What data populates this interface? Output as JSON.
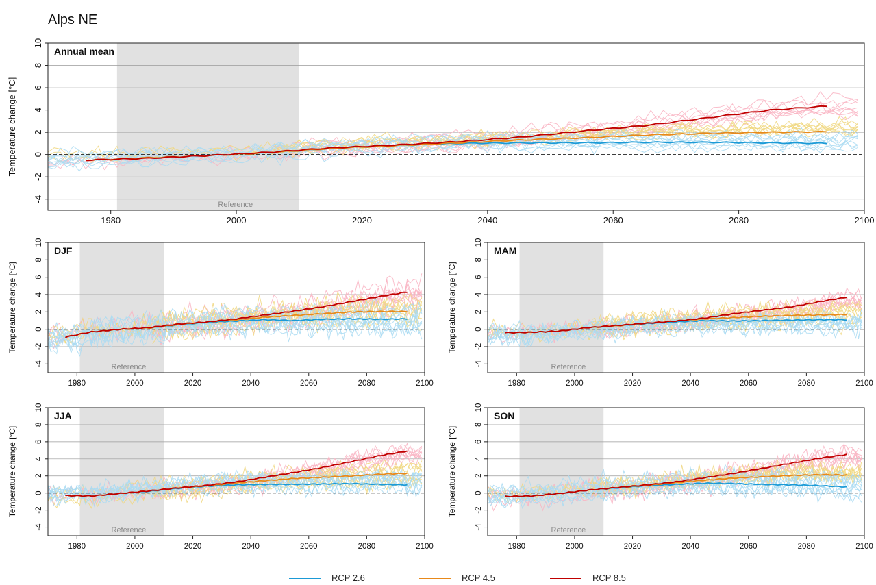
{
  "title": "Alps NE",
  "colors": {
    "rcp26_mean": "#1b9ad6",
    "rcp45_mean": "#e8891a",
    "rcp85_mean": "#c00000",
    "rcp26_members": "#a9daf2",
    "rcp45_members": "#f0d77f",
    "rcp85_members": "#f9b3c2",
    "reference_shade": "#e1e1e1"
  },
  "legend": [
    {
      "label": "RCP 2.6",
      "color": "#1b9ad6"
    },
    {
      "label": "RCP 4.5",
      "color": "#e8891a"
    },
    {
      "label": "RCP 8.5",
      "color": "#c00000"
    }
  ],
  "chart_data": [
    {
      "type": "line",
      "panel": "Annual mean",
      "ylabel": "Temperature change [°C]",
      "xlim": [
        1970,
        2100
      ],
      "ylim": [
        -5,
        10
      ],
      "xticks": [
        1980,
        2000,
        2020,
        2040,
        2060,
        2080,
        2100
      ],
      "yticks": [
        -4,
        -2,
        0,
        2,
        4,
        6,
        8,
        10
      ],
      "reference_period": [
        1981,
        2010
      ],
      "reference_label": "Reference",
      "member_band_halfwidth": 1.0,
      "series": [
        {
          "name": "RCP 2.6",
          "x": [
            1976,
            1985,
            1995,
            2005,
            2015,
            2025,
            2035,
            2045,
            2055,
            2065,
            2075,
            2085,
            2094
          ],
          "y": [
            -0.5,
            -0.3,
            -0.1,
            0.15,
            0.55,
            0.8,
            1.0,
            1.05,
            1.05,
            1.1,
            1.1,
            1.05,
            1.0
          ]
        },
        {
          "name": "RCP 4.5",
          "x": [
            1976,
            1985,
            1995,
            2005,
            2015,
            2025,
            2035,
            2045,
            2055,
            2065,
            2075,
            2085,
            2094
          ],
          "y": [
            -0.5,
            -0.3,
            -0.1,
            0.15,
            0.55,
            0.8,
            1.05,
            1.3,
            1.5,
            1.75,
            1.9,
            2.0,
            2.05
          ]
        },
        {
          "name": "RCP 8.5",
          "x": [
            1976,
            1985,
            1995,
            2005,
            2015,
            2025,
            2035,
            2045,
            2055,
            2065,
            2075,
            2085,
            2094
          ],
          "y": [
            -0.5,
            -0.35,
            -0.1,
            0.2,
            0.6,
            0.85,
            1.15,
            1.55,
            2.1,
            2.6,
            3.3,
            4.0,
            4.35
          ]
        }
      ]
    },
    {
      "type": "line",
      "panel": "DJF",
      "ylabel": "Temperature change [°C]",
      "xlim": [
        1970,
        2100
      ],
      "ylim": [
        -5,
        10
      ],
      "xticks": [
        1980,
        2000,
        2020,
        2040,
        2060,
        2080,
        2100
      ],
      "yticks": [
        -4,
        -2,
        0,
        2,
        4,
        6,
        8,
        10
      ],
      "reference_period": [
        1981,
        2010
      ],
      "reference_label": "Reference",
      "member_band_halfwidth": 2.0,
      "series": [
        {
          "name": "RCP 2.6",
          "x": [
            1976,
            1985,
            1995,
            2005,
            2015,
            2025,
            2035,
            2045,
            2055,
            2065,
            2075,
            2085,
            2094
          ],
          "y": [
            -0.9,
            -0.3,
            0.0,
            0.15,
            0.5,
            0.8,
            0.95,
            1.1,
            1.0,
            1.15,
            1.2,
            1.15,
            1.2
          ]
        },
        {
          "name": "RCP 4.5",
          "x": [
            1976,
            1985,
            1995,
            2005,
            2015,
            2025,
            2035,
            2045,
            2055,
            2065,
            2075,
            2085,
            2094
          ],
          "y": [
            -0.9,
            -0.3,
            0.0,
            0.15,
            0.55,
            0.85,
            1.1,
            1.4,
            1.6,
            1.8,
            2.0,
            2.05,
            2.05
          ]
        },
        {
          "name": "RCP 8.5",
          "x": [
            1976,
            1985,
            1995,
            2005,
            2015,
            2025,
            2035,
            2045,
            2055,
            2065,
            2075,
            2085,
            2094
          ],
          "y": [
            -0.9,
            -0.3,
            0.0,
            0.2,
            0.6,
            0.85,
            1.2,
            1.65,
            2.1,
            2.6,
            3.2,
            3.8,
            4.3
          ]
        }
      ]
    },
    {
      "type": "line",
      "panel": "MAM",
      "ylabel": "Temperature change [°C]",
      "xlim": [
        1970,
        2100
      ],
      "ylim": [
        -5,
        10
      ],
      "xticks": [
        1980,
        2000,
        2020,
        2040,
        2060,
        2080,
        2100
      ],
      "yticks": [
        -4,
        -2,
        0,
        2,
        4,
        6,
        8,
        10
      ],
      "reference_period": [
        1981,
        2010
      ],
      "reference_label": "Reference",
      "member_band_halfwidth": 1.6,
      "series": [
        {
          "name": "RCP 2.6",
          "x": [
            1976,
            1985,
            1995,
            2005,
            2015,
            2025,
            2035,
            2045,
            2055,
            2065,
            2075,
            2085,
            2094
          ],
          "y": [
            -0.4,
            -0.35,
            -0.2,
            0.2,
            0.4,
            0.65,
            0.85,
            1.0,
            0.95,
            1.0,
            1.05,
            1.1,
            1.1
          ]
        },
        {
          "name": "RCP 4.5",
          "x": [
            1976,
            1985,
            1995,
            2005,
            2015,
            2025,
            2035,
            2045,
            2055,
            2065,
            2075,
            2085,
            2094
          ],
          "y": [
            -0.4,
            -0.35,
            -0.2,
            0.2,
            0.4,
            0.7,
            0.95,
            1.2,
            1.35,
            1.5,
            1.6,
            1.65,
            1.7
          ]
        },
        {
          "name": "RCP 8.5",
          "x": [
            1976,
            1985,
            1995,
            2005,
            2015,
            2025,
            2035,
            2045,
            2055,
            2065,
            2075,
            2085,
            2094
          ],
          "y": [
            -0.4,
            -0.35,
            -0.2,
            0.2,
            0.45,
            0.7,
            0.95,
            1.3,
            1.8,
            2.2,
            2.6,
            3.2,
            3.7
          ]
        }
      ]
    },
    {
      "type": "line",
      "panel": "JJA",
      "ylabel": "Temperature change [°C]",
      "xlim": [
        1970,
        2100
      ],
      "ylim": [
        -5,
        10
      ],
      "xticks": [
        1980,
        2000,
        2020,
        2040,
        2060,
        2080,
        2100
      ],
      "yticks": [
        -4,
        -2,
        0,
        2,
        4,
        6,
        8,
        10
      ],
      "reference_period": [
        1981,
        2010
      ],
      "reference_label": "Reference",
      "member_band_halfwidth": 1.5,
      "series": [
        {
          "name": "RCP 2.6",
          "x": [
            1976,
            1985,
            1995,
            2005,
            2015,
            2025,
            2035,
            2045,
            2055,
            2065,
            2075,
            2085,
            2094
          ],
          "y": [
            -0.3,
            -0.35,
            -0.05,
            0.2,
            0.55,
            0.8,
            0.95,
            1.0,
            1.0,
            1.05,
            1.1,
            1.0,
            0.95
          ]
        },
        {
          "name": "RCP 4.5",
          "x": [
            1976,
            1985,
            1995,
            2005,
            2015,
            2025,
            2035,
            2045,
            2055,
            2065,
            2075,
            2085,
            2094
          ],
          "y": [
            -0.3,
            -0.35,
            -0.05,
            0.25,
            0.6,
            0.85,
            1.15,
            1.45,
            1.7,
            1.85,
            2.0,
            2.2,
            2.3
          ]
        },
        {
          "name": "RCP 8.5",
          "x": [
            1976,
            1985,
            1995,
            2005,
            2015,
            2025,
            2035,
            2045,
            2055,
            2065,
            2075,
            2085,
            2094
          ],
          "y": [
            -0.3,
            -0.35,
            -0.05,
            0.25,
            0.6,
            0.9,
            1.3,
            1.85,
            2.4,
            3.0,
            3.7,
            4.4,
            4.9
          ]
        }
      ]
    },
    {
      "type": "line",
      "panel": "SON",
      "ylabel": "Temperature change [°C]",
      "xlim": [
        1970,
        2100
      ],
      "ylim": [
        -5,
        10
      ],
      "xticks": [
        1980,
        2000,
        2020,
        2040,
        2060,
        2080,
        2100
      ],
      "yticks": [
        -4,
        -2,
        0,
        2,
        4,
        6,
        8,
        10
      ],
      "reference_period": [
        1981,
        2010
      ],
      "reference_label": "Reference",
      "member_band_halfwidth": 1.7,
      "series": [
        {
          "name": "RCP 2.6",
          "x": [
            1976,
            1985,
            1995,
            2005,
            2015,
            2025,
            2035,
            2045,
            2055,
            2065,
            2075,
            2085,
            2094
          ],
          "y": [
            -0.4,
            -0.35,
            -0.05,
            0.35,
            0.6,
            0.85,
            1.0,
            1.15,
            1.1,
            1.0,
            0.95,
            0.85,
            0.7
          ]
        },
        {
          "name": "RCP 4.5",
          "x": [
            1976,
            1985,
            1995,
            2005,
            2015,
            2025,
            2035,
            2045,
            2055,
            2065,
            2075,
            2085,
            2094
          ],
          "y": [
            -0.4,
            -0.35,
            -0.05,
            0.35,
            0.65,
            0.9,
            1.2,
            1.5,
            1.75,
            1.9,
            2.05,
            2.15,
            2.1
          ]
        },
        {
          "name": "RCP 8.5",
          "x": [
            1976,
            1985,
            1995,
            2005,
            2015,
            2025,
            2035,
            2045,
            2055,
            2065,
            2075,
            2085,
            2094
          ],
          "y": [
            -0.4,
            -0.35,
            -0.05,
            0.35,
            0.65,
            0.95,
            1.3,
            1.8,
            2.3,
            2.9,
            3.5,
            4.1,
            4.5
          ]
        }
      ]
    }
  ]
}
